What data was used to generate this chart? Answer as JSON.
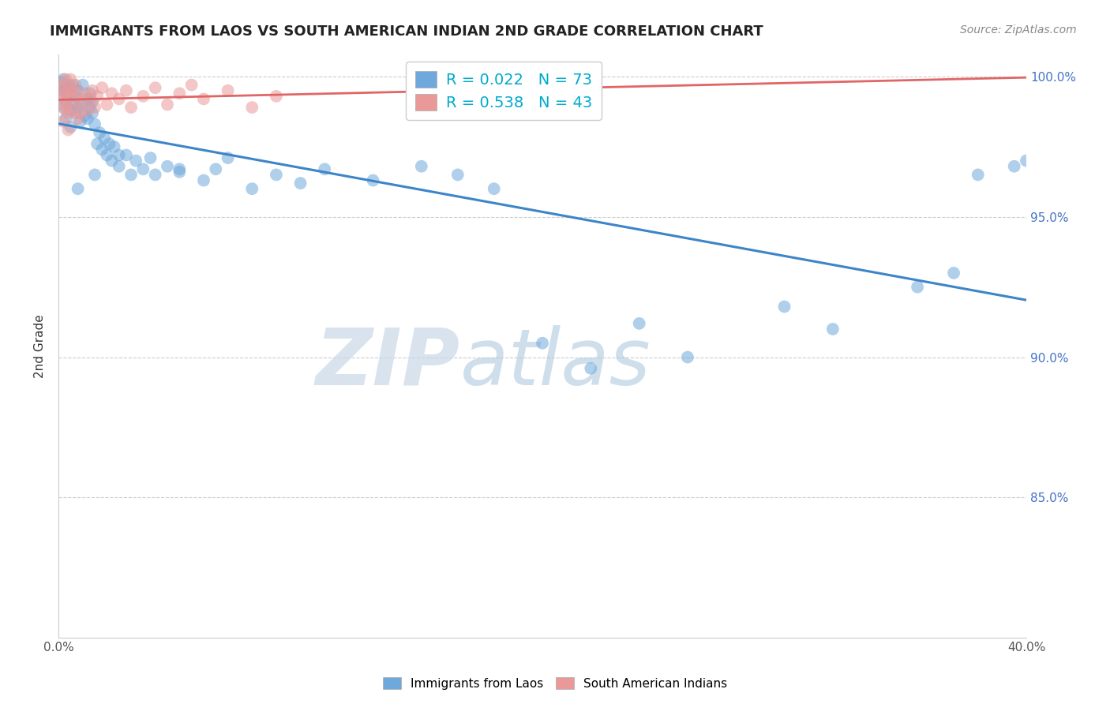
{
  "title": "IMMIGRANTS FROM LAOS VS SOUTH AMERICAN INDIAN 2ND GRADE CORRELATION CHART",
  "source": "Source: ZipAtlas.com",
  "ylabel": "2nd Grade",
  "xlim": [
    0.0,
    0.4
  ],
  "ylim": [
    0.8,
    1.008
  ],
  "blue_color": "#6fa8dc",
  "pink_color": "#ea9999",
  "blue_line_color": "#3d85c8",
  "pink_line_color": "#e06666",
  "legend_r_blue": "R = 0.022",
  "legend_n_blue": "N = 73",
  "legend_r_pink": "R = 0.538",
  "legend_n_pink": "N = 43",
  "blue_x": [
    0.001,
    0.001,
    0.002,
    0.002,
    0.002,
    0.003,
    0.003,
    0.003,
    0.004,
    0.004,
    0.005,
    0.005,
    0.005,
    0.006,
    0.006,
    0.007,
    0.007,
    0.008,
    0.008,
    0.009,
    0.01,
    0.01,
    0.011,
    0.012,
    0.012,
    0.013,
    0.013,
    0.014,
    0.014,
    0.015,
    0.016,
    0.017,
    0.018,
    0.019,
    0.02,
    0.021,
    0.022,
    0.023,
    0.025,
    0.028,
    0.03,
    0.032,
    0.035,
    0.038,
    0.04,
    0.045,
    0.05,
    0.06,
    0.065,
    0.07,
    0.08,
    0.09,
    0.1,
    0.11,
    0.13,
    0.15,
    0.165,
    0.18,
    0.2,
    0.22,
    0.24,
    0.26,
    0.3,
    0.32,
    0.355,
    0.37,
    0.38,
    0.395,
    0.4,
    0.05,
    0.025,
    0.015,
    0.008
  ],
  "blue_y": [
    0.998,
    0.994,
    0.989,
    0.995,
    0.999,
    0.991,
    0.996,
    0.985,
    0.993,
    0.997,
    0.988,
    0.996,
    0.982,
    0.991,
    0.997,
    0.987,
    0.993,
    0.989,
    0.995,
    0.984,
    0.99,
    0.997,
    0.986,
    0.992,
    0.985,
    0.989,
    0.994,
    0.987,
    0.991,
    0.983,
    0.976,
    0.98,
    0.974,
    0.978,
    0.972,
    0.976,
    0.97,
    0.975,
    0.968,
    0.972,
    0.965,
    0.97,
    0.967,
    0.971,
    0.965,
    0.968,
    0.966,
    0.963,
    0.967,
    0.971,
    0.96,
    0.965,
    0.962,
    0.967,
    0.963,
    0.968,
    0.965,
    0.96,
    0.905,
    0.896,
    0.912,
    0.9,
    0.918,
    0.91,
    0.925,
    0.93,
    0.965,
    0.968,
    0.97,
    0.967,
    0.972,
    0.965,
    0.96
  ],
  "pink_x": [
    0.001,
    0.001,
    0.002,
    0.002,
    0.003,
    0.003,
    0.003,
    0.004,
    0.004,
    0.005,
    0.005,
    0.006,
    0.006,
    0.007,
    0.007,
    0.008,
    0.008,
    0.009,
    0.01,
    0.011,
    0.012,
    0.013,
    0.014,
    0.015,
    0.016,
    0.018,
    0.02,
    0.022,
    0.025,
    0.028,
    0.03,
    0.035,
    0.04,
    0.045,
    0.05,
    0.055,
    0.06,
    0.07,
    0.08,
    0.09,
    0.002,
    0.003,
    0.004
  ],
  "pink_y": [
    0.993,
    0.997,
    0.99,
    0.996,
    0.991,
    0.994,
    0.999,
    0.987,
    0.993,
    0.995,
    0.999,
    0.988,
    0.995,
    0.991,
    0.997,
    0.985,
    0.993,
    0.987,
    0.991,
    0.994,
    0.988,
    0.992,
    0.995,
    0.989,
    0.993,
    0.996,
    0.99,
    0.994,
    0.992,
    0.995,
    0.989,
    0.993,
    0.996,
    0.99,
    0.994,
    0.997,
    0.992,
    0.995,
    0.989,
    0.993,
    0.984,
    0.988,
    0.981
  ]
}
